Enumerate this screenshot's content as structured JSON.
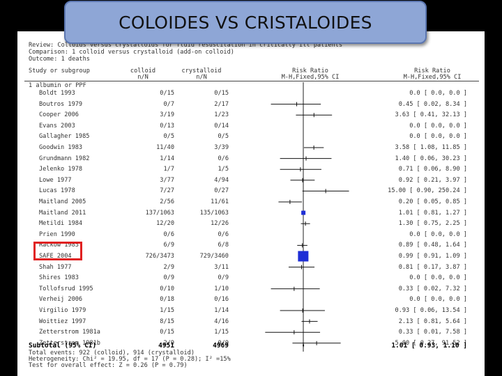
{
  "slide_title": "COLOIDES VS CRISTALOIDES",
  "review": {
    "review_line": "Review:  Colloids versus crystalloids for fluid resuscitation in critically ill patients",
    "comparison_line": "Comparison:  1 colloid versus crystalloid (add-on colloid)",
    "outcome_line": "Outcome:  1 deaths"
  },
  "headers": {
    "study": "Study or subgroup",
    "colloid_1": "colloid",
    "colloid_2": "n/N",
    "cryst_1": "crystalloid",
    "cryst_2": "n/N",
    "rr_1": "Risk Ratio",
    "rr_2": "M-H,Fixed,95% CI",
    "rr_text_1": "Risk Ratio",
    "rr_text_2": "M-H,Fixed,95% CI"
  },
  "subgroup_label": "1 albumin or PPF",
  "highlighted_study": "SAFE 2004",
  "chart_data": {
    "type": "forest",
    "scale": "log",
    "rows": [
      {
        "study": "Boldt 1993",
        "colloid": "0/15",
        "crystalloid": "0/15",
        "rr_text": "0.0 [ 0.0, 0.0 ]",
        "rr": null,
        "lo": null,
        "hi": null
      },
      {
        "study": "Boutros 1979",
        "colloid": "0/7",
        "crystalloid": "2/17",
        "rr_text": "0.45 [ 0.02, 8.34 ]",
        "rr": 0.45,
        "lo": 0.02,
        "hi": 8.34
      },
      {
        "study": "Cooper 2006",
        "colloid": "3/19",
        "crystalloid": "1/23",
        "rr_text": "3.63 [ 0.41, 32.13 ]",
        "rr": 3.63,
        "lo": 0.41,
        "hi": 32.13
      },
      {
        "study": "Evans 2003",
        "colloid": "0/13",
        "crystalloid": "0/14",
        "rr_text": "0.0 [ 0.0, 0.0 ]",
        "rr": null,
        "lo": null,
        "hi": null
      },
      {
        "study": "Gallagher 1985",
        "colloid": "0/5",
        "crystalloid": "0/5",
        "rr_text": "0.0 [ 0.0, 0.0 ]",
        "rr": null,
        "lo": null,
        "hi": null
      },
      {
        "study": "Goodwin 1983",
        "colloid": "11/40",
        "crystalloid": "3/39",
        "rr_text": "3.58 [ 1.08, 11.85 ]",
        "rr": 3.58,
        "lo": 1.08,
        "hi": 11.85
      },
      {
        "study": "Grundmann 1982",
        "colloid": "1/14",
        "crystalloid": "0/6",
        "rr_text": "1.40 [ 0.06, 30.23 ]",
        "rr": 1.4,
        "lo": 0.06,
        "hi": 30.23
      },
      {
        "study": "Jelenko 1978",
        "colloid": "1/7",
        "crystalloid": "1/5",
        "rr_text": "0.71 [ 0.06, 8.90 ]",
        "rr": 0.71,
        "lo": 0.06,
        "hi": 8.9
      },
      {
        "study": "Lowe 1977",
        "colloid": "3/77",
        "crystalloid": "4/94",
        "rr_text": "0.92 [ 0.21, 3.97 ]",
        "rr": 0.92,
        "lo": 0.21,
        "hi": 3.97
      },
      {
        "study": "Lucas 1978",
        "colloid": "7/27",
        "crystalloid": "0/27",
        "rr_text": "15.00 [ 0.90, 250.24 ]",
        "rr": 15.0,
        "lo": 0.9,
        "hi": 250.24
      },
      {
        "study": "Maitland 2005",
        "colloid": "2/56",
        "crystalloid": "11/61",
        "rr_text": "0.20 [ 0.05, 0.85 ]",
        "rr": 0.2,
        "lo": 0.05,
        "hi": 0.85
      },
      {
        "study": "Maitland 2011",
        "colloid": "137/1063",
        "crystalloid": "135/1063",
        "rr_text": "1.01 [ 0.81, 1.27 ]",
        "rr": 1.01,
        "lo": 0.81,
        "hi": 1.27,
        "weight": "large"
      },
      {
        "study": "Metildi 1984",
        "colloid": "12/20",
        "crystalloid": "12/26",
        "rr_text": "1.30 [ 0.75, 2.25 ]",
        "rr": 1.3,
        "lo": 0.75,
        "hi": 2.25
      },
      {
        "study": "Prien 1990",
        "colloid": "0/6",
        "crystalloid": "0/6",
        "rr_text": "0.0 [ 0.0, 0.0 ]",
        "rr": null,
        "lo": null,
        "hi": null
      },
      {
        "study": "Rackow 1983",
        "colloid": "6/9",
        "crystalloid": "6/8",
        "rr_text": "0.89 [ 0.48, 1.64 ]",
        "rr": 0.89,
        "lo": 0.48,
        "hi": 1.64
      },
      {
        "study": "SAFE 2004",
        "colloid": "726/3473",
        "crystalloid": "729/3460",
        "rr_text": "0.99 [ 0.91, 1.09 ]",
        "rr": 0.99,
        "lo": 0.91,
        "hi": 1.09,
        "weight": "very-large"
      },
      {
        "study": "Shah 1977",
        "colloid": "2/9",
        "crystalloid": "3/11",
        "rr_text": "0.81 [ 0.17, 3.87 ]",
        "rr": 0.81,
        "lo": 0.17,
        "hi": 3.87
      },
      {
        "study": "Shires 1983",
        "colloid": "0/9",
        "crystalloid": "0/9",
        "rr_text": "0.0 [ 0.0, 0.0 ]",
        "rr": null,
        "lo": null,
        "hi": null
      },
      {
        "study": "Tollofsrud 1995",
        "colloid": "0/10",
        "crystalloid": "1/10",
        "rr_text": "0.33 [ 0.02, 7.32 ]",
        "rr": 0.33,
        "lo": 0.02,
        "hi": 7.32
      },
      {
        "study": "Verheij 2006",
        "colloid": "0/18",
        "crystalloid": "0/16",
        "rr_text": "0.0 [ 0.0, 0.0 ]",
        "rr": null,
        "lo": null,
        "hi": null
      },
      {
        "study": "Virgilio 1979",
        "colloid": "1/15",
        "crystalloid": "1/14",
        "rr_text": "0.93 [ 0.06, 13.54 ]",
        "rr": 0.93,
        "lo": 0.06,
        "hi": 13.54
      },
      {
        "study": "Woittiez 1997",
        "colloid": "8/15",
        "crystalloid": "4/16",
        "rr_text": "2.13 [ 0.81, 5.64 ]",
        "rr": 2.13,
        "lo": 0.81,
        "hi": 5.64
      },
      {
        "study": "Zetterstrom 1981a",
        "colloid": "0/15",
        "crystalloid": "1/15",
        "rr_text": "0.33 [ 0.01, 7.58 ]",
        "rr": 0.33,
        "lo": 0.01,
        "hi": 7.58
      },
      {
        "study": "Zetterstrom 1981b",
        "colloid": "2/9",
        "crystalloid": "0/9",
        "rr_text": "5.00 [ 0.27, 91.52 ]",
        "rr": 5.0,
        "lo": 0.27,
        "hi": 91.52
      }
    ],
    "subtotal": {
      "label": "Subtotal (95% CI)",
      "colloid": "4951",
      "crystalloid": "4969",
      "rr_text": "1.01 [ 0.93, 1.10 ]",
      "rr": 1.01,
      "lo": 0.93,
      "hi": 1.1
    },
    "footnotes": [
      "Total events: 922 (colloid), 914 (crystalloid)",
      "Heterogeneity: Chi² = 19.95, df = 17 (P = 0.28); I² =15%",
      "Test for overall effect: Z = 0.26 (P = 0.79)"
    ]
  }
}
